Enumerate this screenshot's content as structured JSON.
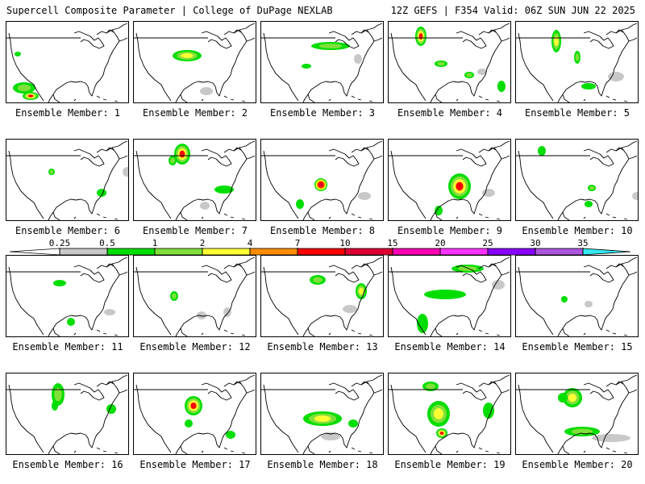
{
  "header": {
    "title_left": "Supercell Composite Parameter | College of DuPage NEXLAB",
    "title_right": "12Z GEFS | F354 Valid: 06Z SUN JUN 22 2025"
  },
  "legend": {
    "levels": [
      "0.25",
      "0.5",
      "1",
      "2",
      "4",
      "7",
      "10",
      "15",
      "20",
      "25",
      "30",
      "35"
    ],
    "colors": [
      "#c8c8c8",
      "#00dd00",
      "#7fe03a",
      "#ffff33",
      "#ff8c00",
      "#ff0000",
      "#dd0033",
      "#ff00b4",
      "#ff33ff",
      "#8800ff",
      "#aa55dd",
      "#33e8f0"
    ]
  },
  "members": [
    {
      "label": "Ensemble Member: 1",
      "blobs": [
        [
          22,
          82,
          14,
          7,
          2
        ],
        [
          30,
          92,
          10,
          5,
          4
        ],
        [
          14,
          40,
          4,
          3,
          1
        ]
      ]
    },
    {
      "label": "Ensemble Member: 2",
      "blobs": [
        [
          66,
          42,
          18,
          7,
          3
        ],
        [
          90,
          86,
          8,
          5,
          0
        ]
      ]
    },
    {
      "label": "Ensemble Member: 3",
      "blobs": [
        [
          86,
          30,
          24,
          5,
          2
        ],
        [
          56,
          55,
          6,
          3,
          1
        ],
        [
          120,
          46,
          5,
          6,
          0
        ]
      ]
    },
    {
      "label": "Ensemble Member: 4",
      "blobs": [
        [
          40,
          18,
          7,
          12,
          4
        ],
        [
          65,
          52,
          8,
          4,
          2
        ],
        [
          100,
          66,
          6,
          4,
          2
        ],
        [
          140,
          80,
          5,
          7,
          1
        ],
        [
          116,
          62,
          6,
          4,
          0
        ]
      ]
    },
    {
      "label": "Ensemble Member: 5",
      "blobs": [
        [
          50,
          24,
          6,
          14,
          3
        ],
        [
          76,
          44,
          4,
          8,
          2
        ],
        [
          90,
          80,
          9,
          4,
          1
        ],
        [
          124,
          68,
          10,
          6,
          0
        ]
      ]
    },
    {
      "label": "Ensemble Member: 6",
      "blobs": [
        [
          56,
          40,
          4,
          4,
          2
        ],
        [
          118,
          66,
          6,
          5,
          1
        ],
        [
          150,
          40,
          6,
          6,
          0
        ]
      ]
    },
    {
      "label": "Ensemble Member: 7",
      "blobs": [
        [
          60,
          18,
          10,
          13,
          4
        ],
        [
          48,
          26,
          5,
          6,
          2
        ],
        [
          112,
          62,
          12,
          5,
          1
        ],
        [
          88,
          82,
          6,
          5,
          0
        ]
      ]
    },
    {
      "label": "Ensemble Member: 8",
      "blobs": [
        [
          74,
          56,
          8,
          8,
          5
        ],
        [
          128,
          70,
          8,
          5,
          0
        ],
        [
          48,
          80,
          5,
          6,
          1
        ]
      ]
    },
    {
      "label": "Ensemble Member: 9",
      "blobs": [
        [
          88,
          58,
          14,
          16,
          4
        ],
        [
          62,
          88,
          5,
          6,
          1
        ],
        [
          124,
          66,
          8,
          5,
          0
        ]
      ]
    },
    {
      "label": "Ensemble Member: 10",
      "blobs": [
        [
          32,
          14,
          5,
          6,
          1
        ],
        [
          94,
          60,
          5,
          4,
          2
        ],
        [
          90,
          80,
          5,
          4,
          1
        ],
        [
          150,
          70,
          6,
          5,
          0
        ]
      ]
    },
    {
      "label": "Ensemble Member: 11",
      "blobs": [
        [
          66,
          34,
          8,
          4,
          1
        ],
        [
          80,
          82,
          5,
          5,
          1
        ],
        [
          128,
          70,
          7,
          4,
          0
        ]
      ]
    },
    {
      "label": "Ensemble Member: 12",
      "blobs": [
        [
          50,
          50,
          5,
          6,
          2
        ],
        [
          84,
          74,
          6,
          5,
          0
        ],
        [
          116,
          70,
          5,
          6,
          0
        ]
      ]
    },
    {
      "label": "Ensemble Member: 13",
      "blobs": [
        [
          70,
          30,
          10,
          6,
          2
        ],
        [
          124,
          44,
          7,
          10,
          3
        ],
        [
          110,
          66,
          9,
          5,
          0
        ]
      ]
    },
    {
      "label": "Ensemble Member: 14",
      "blobs": [
        [
          98,
          16,
          20,
          5,
          2
        ],
        [
          70,
          48,
          26,
          6,
          1
        ],
        [
          42,
          84,
          7,
          12,
          1
        ],
        [
          136,
          36,
          8,
          6,
          0
        ]
      ]
    },
    {
      "label": "Ensemble Member: 15",
      "blobs": [
        [
          60,
          54,
          4,
          4,
          1
        ],
        [
          90,
          60,
          5,
          4,
          0
        ]
      ]
    },
    {
      "label": "Ensemble Member: 16",
      "blobs": [
        [
          64,
          26,
          8,
          14,
          2
        ],
        [
          60,
          40,
          4,
          6,
          1
        ],
        [
          130,
          44,
          6,
          6,
          1
        ]
      ]
    },
    {
      "label": "Ensemble Member: 17",
      "blobs": [
        [
          74,
          40,
          11,
          12,
          4
        ],
        [
          120,
          76,
          6,
          5,
          1
        ],
        [
          68,
          62,
          5,
          5,
          1
        ]
      ]
    },
    {
      "label": "Ensemble Member: 18",
      "blobs": [
        [
          76,
          56,
          24,
          9,
          3
        ],
        [
          86,
          78,
          12,
          5,
          0
        ],
        [
          114,
          62,
          6,
          5,
          1
        ]
      ]
    },
    {
      "label": "Ensemble Member: 19",
      "blobs": [
        [
          62,
          50,
          14,
          16,
          3
        ],
        [
          66,
          74,
          7,
          6,
          4
        ],
        [
          52,
          16,
          10,
          6,
          2
        ],
        [
          124,
          46,
          7,
          10,
          1
        ]
      ]
    },
    {
      "label": "Ensemble Member: 20",
      "blobs": [
        [
          70,
          30,
          12,
          12,
          3
        ],
        [
          82,
          72,
          22,
          6,
          2
        ],
        [
          118,
          80,
          24,
          5,
          0
        ],
        [
          58,
          30,
          6,
          6,
          1
        ]
      ]
    }
  ]
}
